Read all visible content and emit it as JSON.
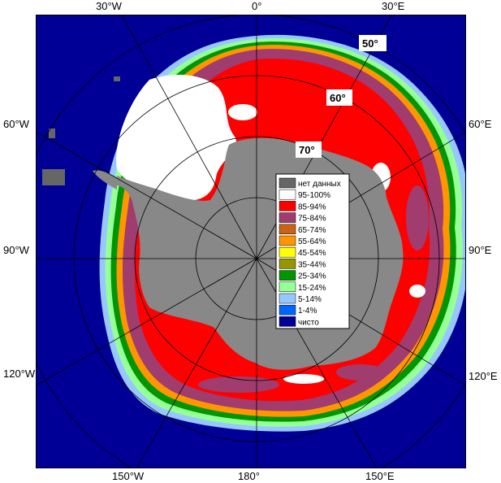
{
  "map": {
    "longitude_labels": {
      "top_left": "30°W",
      "top_center": "0°",
      "top_right": "30°E",
      "left_upper": "60°W",
      "left_middle": "90°W",
      "left_lower": "120°W",
      "right_upper": "60°E",
      "right_middle": "90°E",
      "right_lower": "120°E",
      "bottom_left": "150°W",
      "bottom_center": "180°",
      "bottom_right": "150°E"
    },
    "latitude_labels": [
      "50°",
      "60°",
      "70°"
    ]
  },
  "legend": {
    "items": [
      {
        "label": "нет данных",
        "color": "#666666"
      },
      {
        "label": "95-100%",
        "color": "#ffffff"
      },
      {
        "label": "85-94%",
        "color": "#ff0000"
      },
      {
        "label": "75-84%",
        "color": "#a03c6e"
      },
      {
        "label": "65-74%",
        "color": "#c86414"
      },
      {
        "label": "55-64%",
        "color": "#ff9600"
      },
      {
        "label": "45-54%",
        "color": "#ffff00"
      },
      {
        "label": "35-44%",
        "color": "#969600"
      },
      {
        "label": "25-34%",
        "color": "#009600"
      },
      {
        "label": "15-24%",
        "color": "#96ff96"
      },
      {
        "label": "5-14%",
        "color": "#96c8ff"
      },
      {
        "label": "1-4%",
        "color": "#0064ff"
      },
      {
        "label": "чисто",
        "color": "#000096"
      }
    ]
  },
  "colors": {
    "ocean": "#000096",
    "land": "#888888",
    "no_data": "#666666",
    "frame": "#808080",
    "grid": "#b4b4b4"
  }
}
